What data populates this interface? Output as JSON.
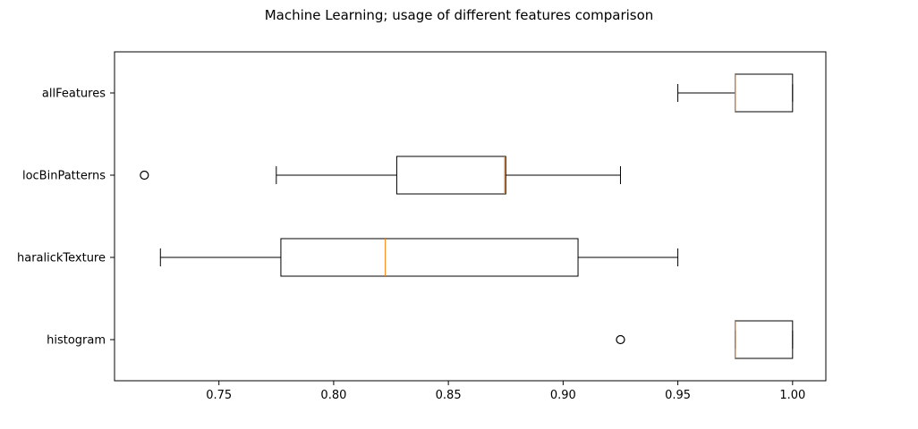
{
  "chart_data": {
    "type": "boxplot",
    "orientation": "horizontal",
    "title": "Machine Learning; usage of different features comparison",
    "xlabel": "",
    "ylabel": "",
    "xlim": [
      0.7045,
      1.0145
    ],
    "grid": false,
    "x_ticks": [
      0.75,
      0.8,
      0.85,
      0.9,
      0.95,
      1.0
    ],
    "x_tick_labels": [
      "0.75",
      "0.80",
      "0.85",
      "0.90",
      "0.95",
      "1.00"
    ],
    "categories": [
      "histogram",
      "haralickTexture",
      "locBinPatterns",
      "allFeatures"
    ],
    "boxes": [
      {
        "category": "histogram",
        "whisker_low": 0.975,
        "q1": 0.975,
        "median": 0.975,
        "q3": 1.0,
        "whisker_high": 1.0,
        "outliers": [
          0.925
        ]
      },
      {
        "category": "haralickTexture",
        "whisker_low": 0.7245,
        "q1": 0.777,
        "median": 0.8225,
        "q3": 0.9065,
        "whisker_high": 0.95,
        "outliers": []
      },
      {
        "category": "locBinPatterns",
        "whisker_low": 0.775,
        "q1": 0.8275,
        "median": 0.8745,
        "q3": 0.875,
        "whisker_high": 0.925,
        "outliers": [
          0.7175
        ]
      },
      {
        "category": "allFeatures",
        "whisker_low": 0.95,
        "q1": 0.975,
        "median": 0.975,
        "q3": 1.0,
        "whisker_high": 1.0,
        "outliers": []
      }
    ],
    "colors": {
      "box": "#000000",
      "median": "#ff7f0e",
      "outlier": "#000000"
    }
  }
}
